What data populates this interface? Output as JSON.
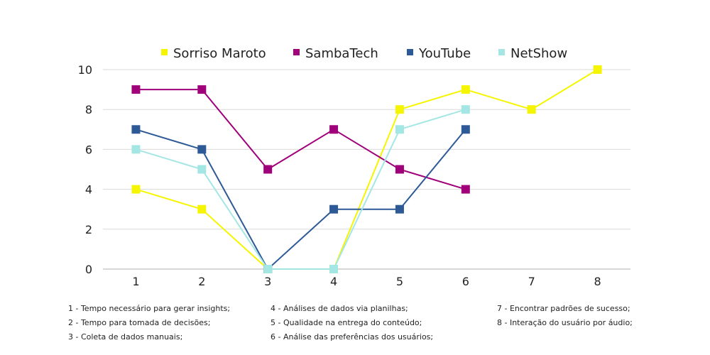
{
  "chart_data": {
    "type": "line",
    "x": [
      1,
      2,
      3,
      4,
      5,
      6,
      7,
      8
    ],
    "ylim": [
      0,
      10
    ],
    "yticks": [
      0,
      2,
      4,
      6,
      8,
      10
    ],
    "grid": true,
    "legend_position": "top",
    "series": [
      {
        "name": "Sorriso Maroto",
        "color": "#f5f500",
        "values": [
          4,
          3,
          0,
          0,
          8,
          9,
          8,
          10
        ]
      },
      {
        "name": "SambaTech",
        "color": "#a0007a",
        "values": [
          9,
          9,
          5,
          7,
          5,
          4,
          null,
          null
        ]
      },
      {
        "name": "YouTube",
        "color": "#2d5a96",
        "values": [
          7,
          6,
          0,
          3,
          3,
          7,
          null,
          null
        ]
      },
      {
        "name": "NetShow",
        "color": "#a3e6e3",
        "values": [
          6,
          5,
          0,
          0,
          7,
          8,
          null,
          null
        ]
      }
    ]
  },
  "notes": [
    "1 - Tempo necessário para gerar insights;",
    "2 - Tempo para tomada de decisões;",
    "3 - Coleta de dados manuais;",
    "4 - Análises de dados via planilhas;",
    "5 - Qualidade na entrega do conteúdo;",
    "6 -  Análise das preferências dos usuários;",
    "7 - Encontrar padrões de sucesso;",
    "8 - Interação do usuário por áudio;"
  ]
}
